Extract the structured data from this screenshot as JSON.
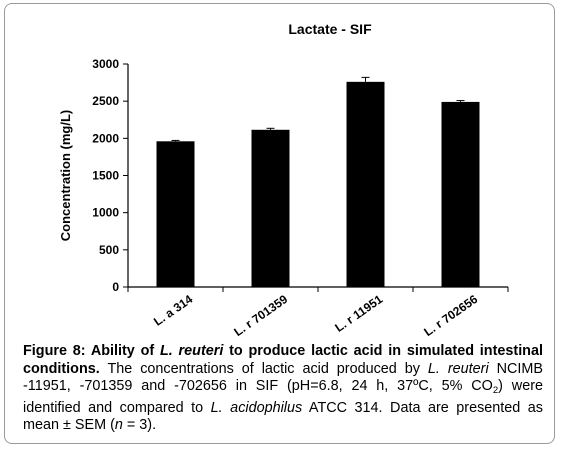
{
  "chart_data": {
    "type": "bar",
    "title": "Lactate - SIF",
    "ylabel": "Concentration (mg/L)",
    "xlabel": "",
    "categories": [
      "L. a 314",
      "L. r 701359",
      "L. r 11951",
      "L. r 702656"
    ],
    "values": [
      1960,
      2115,
      2760,
      2490
    ],
    "errors": [
      12,
      20,
      60,
      18
    ],
    "ylim": [
      0,
      3000
    ],
    "yticks": [
      0,
      500,
      1000,
      1500,
      2000,
      2500,
      3000
    ],
    "grid": false,
    "legend": "none",
    "bar_color": "#000000"
  },
  "caption": {
    "figure_label": "Figure 8: Ability of ",
    "species_bold": "L. reuteri",
    "bold_rest": " to produce lactic acid in simulated intestinal conditions.",
    "text_1": " The concentrations of lactic acid produced by ",
    "species_1": "L. reuteri",
    "text_2": " NCIMB -11951, -701359 and -702656 in SIF (pH=6.8, 24 h, 37ºC, 5% CO",
    "sub_2": "2",
    "text_3": ") were identified and compared to ",
    "species_2": "L. acidophilus",
    "text_4": " ATCC 314. Data are presented as mean ± SEM (",
    "n_var": "n",
    "text_5": " = 3)."
  }
}
